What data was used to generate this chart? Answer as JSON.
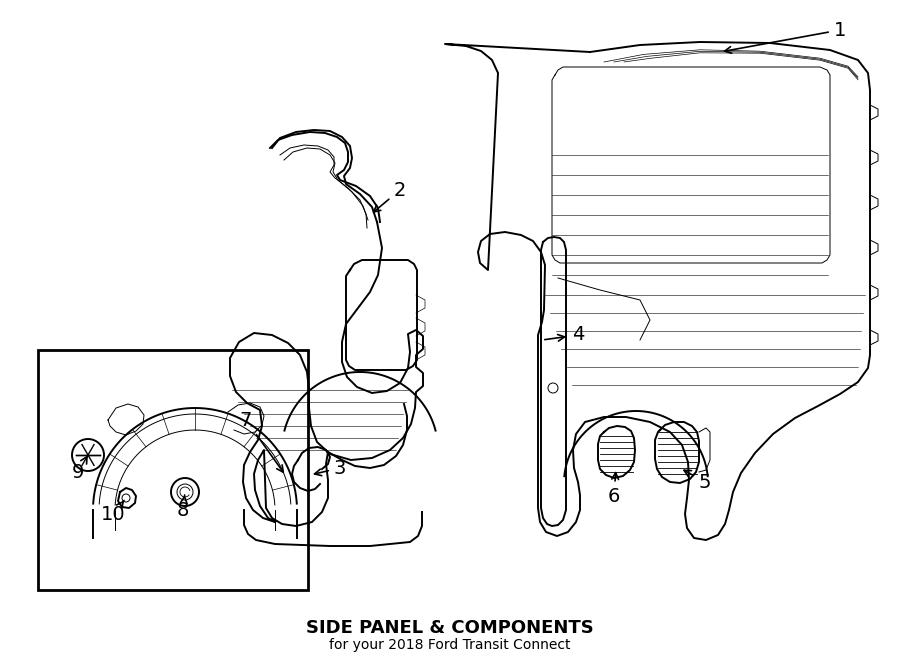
{
  "title": "SIDE PANEL & COMPONENTS",
  "subtitle": "for your 2018 Ford Transit Connect",
  "bg": "#ffffff",
  "lc": "#000000",
  "lw_main": 1.4,
  "lw_thin": 0.7,
  "lw_detail": 0.5
}
